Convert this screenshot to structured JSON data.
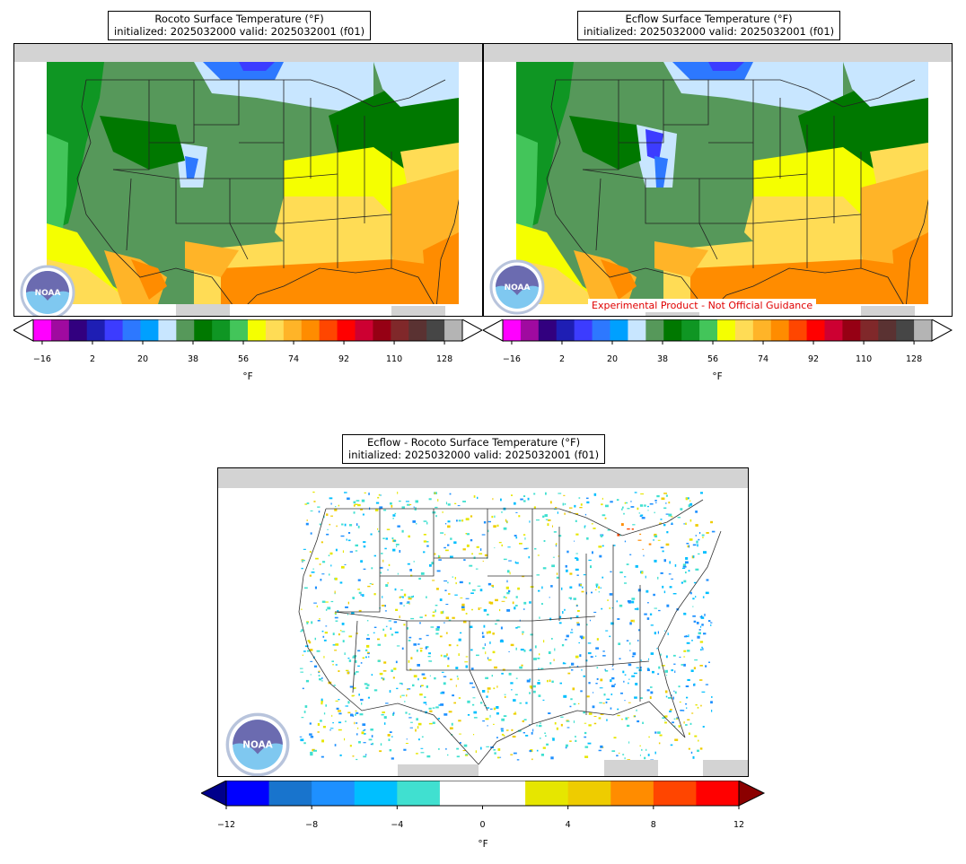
{
  "panels": [
    {
      "id": "rocoto",
      "title_line1": "Rocoto Surface Temperature (°F)",
      "title_line2": "initialized: 2025032000 valid: 2025032001 (f01)"
    },
    {
      "id": "ecflow",
      "title_line1": "Ecflow Surface Temperature (°F)",
      "title_line2": "initialized: 2025032000 valid: 2025032001 (f01)",
      "note": "Experimental Product - Not Official Guidance"
    },
    {
      "id": "difference",
      "title_line1": "Ecflow - Rocoto Surface Temperature (°F)",
      "title_line2": "initialized: 2025032000 valid: 2025032001 (f01)"
    }
  ],
  "logo": {
    "text": "NOAA",
    "icon": "noaa-logo-icon"
  },
  "temp_colorbar": {
    "ticks": [
      "−16",
      "2",
      "20",
      "38",
      "56",
      "74",
      "92",
      "110",
      "128"
    ],
    "unit": "°F",
    "colors": [
      "#ff00ff",
      "#a00aa0",
      "#32007f",
      "#1e1eb4",
      "#3c3cff",
      "#2d78ff",
      "#00a0ff",
      "#c8e6ff",
      "#56985a",
      "#007800",
      "#0f9623",
      "#43c55a",
      "#f5ff00",
      "#ffdc55",
      "#ffb428",
      "#ff8c00",
      "#ff4600",
      "#ff0000",
      "#cd0032",
      "#960014",
      "#80282a",
      "#5a3232",
      "#464646",
      "#b4b4b4"
    ]
  },
  "diff_colorbar": {
    "ticks": [
      "−12",
      "−8",
      "−4",
      "0",
      "4",
      "8",
      "12"
    ],
    "unit": "°F",
    "colors": [
      "#0000ff",
      "#1874cd",
      "#1e90ff",
      "#00bfff",
      "#40e0d0",
      "#ffffff",
      "#ffffff",
      "#e6e600",
      "#eecc00",
      "#ff8c00",
      "#ff4500",
      "#ff0000"
    ],
    "under_color": "#00008b",
    "over_color": "#8b0000"
  }
}
